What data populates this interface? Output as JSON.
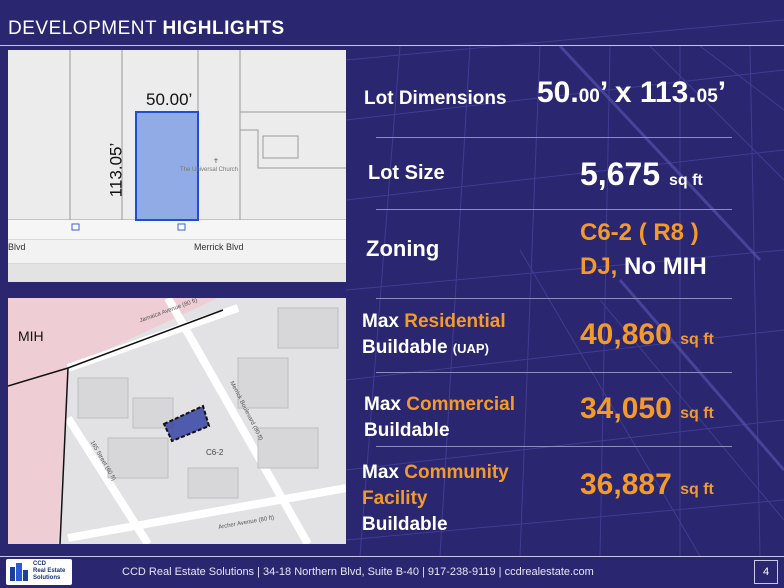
{
  "header": {
    "title_normal": "DEVELOPMENT ",
    "title_bold": "HIGHLIGHTS"
  },
  "map1": {
    "width_label": "50.00’",
    "depth_label": "113.05’",
    "church_label": "The Universal Church",
    "street_left": "Blvd",
    "street_main": "Merrick Blvd",
    "lot_text_1": "",
    "lot_text_2": ""
  },
  "map2": {
    "mih_label": "MIH",
    "zone_label": "C6-2",
    "street_merrick": "Merrick Boulevard (80 ft)",
    "street_165": "165 Street (60 ft)",
    "street_archer": "Archer Avenue (80 ft)",
    "street_jamaica": "Jamaica Avenue (80 ft)"
  },
  "highlights": {
    "lot_dimensions": {
      "label": "Lot Dimensions",
      "v1": "50.",
      "v1s": "00",
      "v2": "’ x 113.",
      "v2s": "05",
      "v3": "’"
    },
    "lot_size": {
      "label": "Lot Size",
      "value": "5,675",
      "unit": "sq ft"
    },
    "zoning": {
      "label": "Zoning",
      "line1": "C6-2 ( R8 )",
      "line2a": "DJ,",
      "line2b": " No MIH"
    },
    "residential": {
      "l1": "Max ",
      "l1o": "Residential",
      "l2": "Buildable ",
      "l2s": "(UAP)",
      "value": "40,860",
      "unit": "sq ft"
    },
    "commercial": {
      "l1": "Max ",
      "l1o": "Commercial",
      "l2": "Buildable",
      "value": "34,050",
      "unit": "sq ft"
    },
    "community": {
      "l1": "Max ",
      "l1o": "Community",
      "l2o": "Facility",
      "l3": "Buildable",
      "value": "36,887",
      "unit": "sq ft"
    }
  },
  "footer": {
    "logo_line1": "CCD",
    "logo_line2": "Real Estate",
    "logo_line3": "Solutions",
    "text": "CCD Real Estate Solutions |  34-18 Northern Blvd, Suite B-40  | 917-238-9119 |  ccdrealestate.com",
    "page": "4"
  },
  "colors": {
    "background": "#2a2670",
    "accent": "#f39a2c",
    "lot_fill": "#7b9be6",
    "lot_stroke": "#1f4fd1"
  }
}
